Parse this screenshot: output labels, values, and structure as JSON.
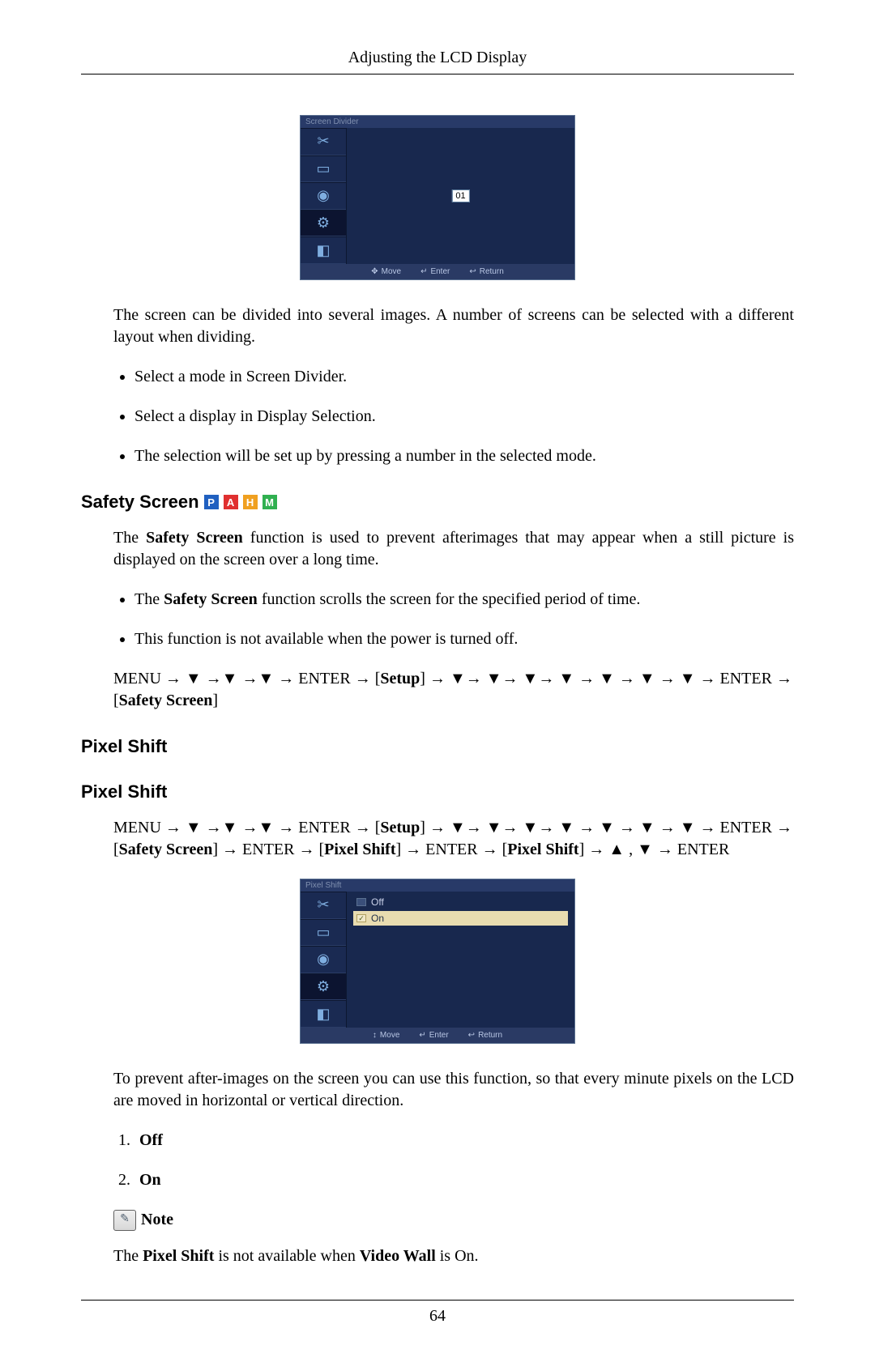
{
  "header": {
    "title": "Adjusting the LCD Display"
  },
  "osd1": {
    "title": "Screen Divider",
    "numbox": "01",
    "footer": {
      "move": "Move",
      "enter": "Enter",
      "return": "Return"
    },
    "icons": [
      "✂",
      "▭",
      "◉",
      "⚙",
      "◧"
    ]
  },
  "screen_divider": {
    "intro": "The screen can be divided into several images. A number of screens can be selected with a different layout when dividing.",
    "bullets": [
      "Select a mode in Screen Divider.",
      "Select a display in Display Selection.",
      "The selection will be set up by pressing a number in the selected mode."
    ]
  },
  "safety_screen": {
    "heading": "Safety Screen",
    "tags": [
      "P",
      "A",
      "H",
      "M"
    ],
    "intro_pre": "The ",
    "intro_bold": "Safety Screen",
    "intro_post": " function is used to prevent afterimages that may appear when a still picture is displayed on the screen over a long time.",
    "bullet1_pre": "The ",
    "bullet1_bold": "Safety Screen",
    "bullet1_post": " function scrolls the screen for the specified period of time.",
    "bullet2": "This function is not available when the power is turned off.",
    "nav_prefix": "MENU → ▼ →▼ →▼ → ENTER → [",
    "nav_setup": "Setup",
    "nav_mid": "] → ▼→ ▼→ ▼→ ▼ → ▼ → ▼ → ▼ → ENTER → [",
    "nav_safety": "Safety Screen",
    "nav_suffix": "]"
  },
  "pixel_shift": {
    "heading1": "Pixel Shift",
    "heading2": "Pixel Shift",
    "nav_prefix": "MENU → ▼ →▼ →▼ → ENTER → [",
    "nav_setup": "Setup",
    "nav_mid1": "] → ▼→ ▼→ ▼→ ▼ → ▼ → ▼ → ▼ → ENTER → [",
    "nav_safety": "Safety Screen",
    "nav_mid2": "] → ENTER → [",
    "nav_ps1": "Pixel Shift",
    "nav_mid3": "] → ENTER → [",
    "nav_ps2": "Pixel Shift",
    "nav_suffix": "] → ▲ , ▼ → ENTER",
    "osd_title": "Pixel Shift",
    "opt_off": "Off",
    "opt_on": "On",
    "footer": {
      "move": "Move",
      "enter": "Enter",
      "return": "Return"
    },
    "description": "To prevent after-images on the screen you can use this function, so that every minute pixels on the LCD are moved in horizontal or vertical direction.",
    "opt1": "Off",
    "opt2": "On",
    "note_label": "Note",
    "note_pre": "The ",
    "note_b1": "Pixel Shift",
    "note_mid": " is not available when ",
    "note_b2": "Video Wall",
    "note_post": " is On."
  },
  "page_number": "64"
}
